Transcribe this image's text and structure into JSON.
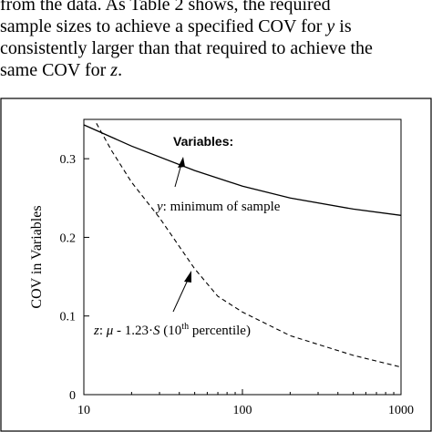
{
  "paragraph": {
    "line1": "from the data. As Table 2 shows, the required",
    "line2_a": "sample sizes to achieve a specified COV for ",
    "line2_var": "y",
    "line2_b": " is",
    "line3": "consistently larger than that required to achieve the",
    "line4_a": "same COV for ",
    "line4_var": "z",
    "line4_b": "."
  },
  "chart_data": {
    "type": "line",
    "ylabel": "COV in Variables",
    "xlabel": "",
    "x_scale": "log",
    "xlim": [
      10,
      1000
    ],
    "ylim": [
      0,
      0.35
    ],
    "x_ticks": [
      "10",
      "100",
      "1000"
    ],
    "y_ticks": [
      "0",
      "0.1",
      "0.2",
      "0.3"
    ],
    "grid": false,
    "legend_title": "Variables:",
    "series": [
      {
        "name": "y: minimum of sample",
        "style": "solid",
        "x": [
          10,
          20,
          50,
          100,
          200,
          500,
          1000
        ],
        "y": [
          0.343,
          0.316,
          0.285,
          0.265,
          0.25,
          0.236,
          0.228
        ]
      },
      {
        "name": "z: μ - 1.23·S (10th percentile)",
        "style": "dashed",
        "x": [
          12,
          15,
          20,
          30,
          50,
          70,
          100,
          200,
          500,
          1000
        ],
        "y": [
          0.345,
          0.31,
          0.27,
          0.225,
          0.16,
          0.125,
          0.105,
          0.075,
          0.05,
          0.035
        ]
      }
    ],
    "annotations": [
      {
        "series": "y",
        "var": "y",
        "text": ": minimum of sample",
        "anchor_x": 45,
        "anchor_y": 0.296
      },
      {
        "series": "z",
        "var": "z",
        "sep": ": ",
        "mu": "μ",
        "mid": " - 1.23·",
        "S": "S",
        "paren_open": " (10",
        "sup": "th",
        "paren_close": " percentile)",
        "anchor_x": 45,
        "anchor_y": 0.165
      }
    ]
  }
}
